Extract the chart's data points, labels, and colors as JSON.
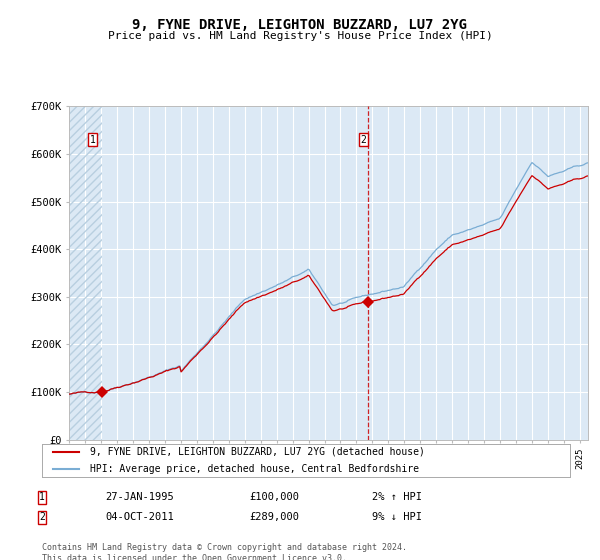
{
  "title": "9, FYNE DRIVE, LEIGHTON BUZZARD, LU7 2YG",
  "subtitle": "Price paid vs. HM Land Registry's House Price Index (HPI)",
  "ylim": [
    0,
    700000
  ],
  "yticks": [
    0,
    100000,
    200000,
    300000,
    400000,
    500000,
    600000,
    700000
  ],
  "ytick_labels": [
    "£0",
    "£100K",
    "£200K",
    "£300K",
    "£400K",
    "£500K",
    "£600K",
    "£700K"
  ],
  "background_color": "#ffffff",
  "plot_bg_color": "#dce9f5",
  "hatch_color": "#b8cfe0",
  "grid_color": "#ffffff",
  "red_line_color": "#cc0000",
  "blue_line_color": "#7aadd4",
  "sale1_date": 1995.07,
  "sale1_price": 100000,
  "sale1_label": "1",
  "sale2_date": 2011.75,
  "sale2_price": 289000,
  "sale2_label": "2",
  "vline2_x": 2011.75,
  "legend_line1": "9, FYNE DRIVE, LEIGHTON BUZZARD, LU7 2YG (detached house)",
  "legend_line2": "HPI: Average price, detached house, Central Bedfordshire",
  "annotation1_date": "27-JAN-1995",
  "annotation1_price": "£100,000",
  "annotation1_hpi": "2% ↑ HPI",
  "annotation2_date": "04-OCT-2011",
  "annotation2_price": "£289,000",
  "annotation2_hpi": "9% ↓ HPI",
  "footer": "Contains HM Land Registry data © Crown copyright and database right 2024.\nThis data is licensed under the Open Government Licence v3.0.",
  "xmin": 1993.0,
  "xmax": 2025.5
}
